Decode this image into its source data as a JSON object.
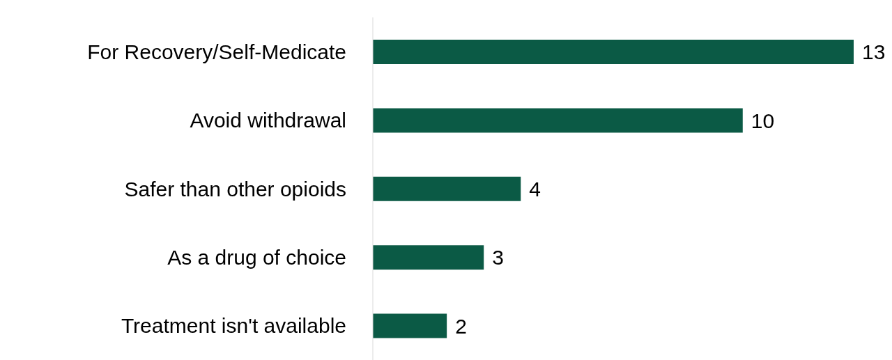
{
  "chart_data": {
    "type": "bar",
    "orientation": "horizontal",
    "categories": [
      "For Recovery/Self-Medicate",
      "Avoid withdrawal",
      "Safer than other opioids",
      "As a drug of choice",
      "Treatment isn't available"
    ],
    "values": [
      13,
      10,
      4,
      3,
      2
    ],
    "color": "#0b5a45",
    "data_labels": true
  }
}
